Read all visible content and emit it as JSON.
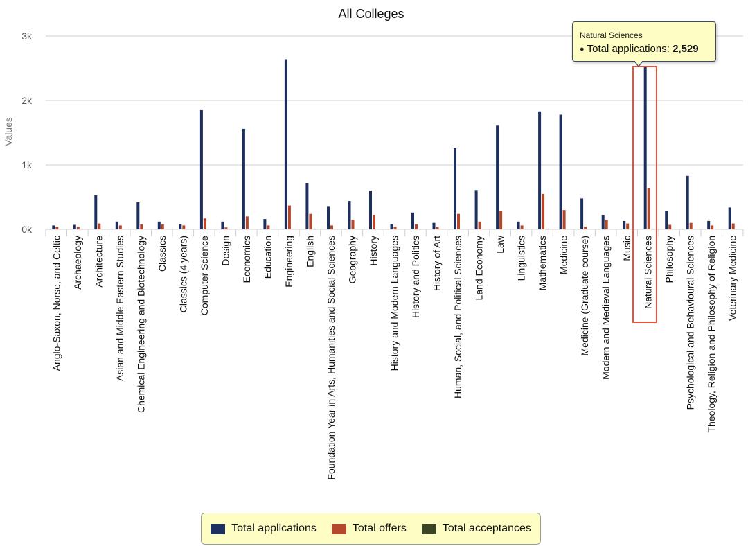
{
  "chart_data": {
    "type": "bar",
    "title": "All Colleges",
    "ylabel": "Values",
    "xlabel": "",
    "ylim": [
      0,
      3000
    ],
    "yticks": [
      {
        "value": 0,
        "label": "0k"
      },
      {
        "value": 1000,
        "label": "1k"
      },
      {
        "value": 2000,
        "label": "2k"
      },
      {
        "value": 3000,
        "label": "3k"
      }
    ],
    "grid": true,
    "legend_position": "bottom-center",
    "categories": [
      "Anglo-Saxon, Norse, and Celtic",
      "Archaeology",
      "Architecture",
      "Asian and Middle Eastern Studies",
      "Chemical Engineering and Biotechnology",
      "Classics",
      "Classics (4 years)",
      "Computer Science",
      "Design",
      "Economics",
      "Education",
      "Engineering",
      "English",
      "Foundation Year in Arts, Humanities and Social Sciences",
      "Geography",
      "History",
      "History and Modern Languages",
      "History and Politics",
      "History of Art",
      "Human, Social, and Political Sciences",
      "Land Economy",
      "Law",
      "Linguistics",
      "Mathematics",
      "Medicine",
      "Medicine (Graduate course)",
      "Modern and Medieval Languages",
      "Music",
      "Natural Sciences",
      "Philosophy",
      "Psychological and Behavioural Sciences",
      "Theology, Religion and Philosophy of Religion",
      "Veterinary Medicine"
    ],
    "series": [
      {
        "name": "Total applications",
        "color": "#1c2f5e",
        "values": [
          60,
          70,
          530,
          120,
          420,
          120,
          80,
          1850,
          120,
          1560,
          160,
          2640,
          720,
          350,
          440,
          600,
          80,
          260,
          100,
          1260,
          610,
          1610,
          120,
          1830,
          1780,
          480,
          220,
          130,
          2529,
          290,
          830,
          130,
          340
        ]
      },
      {
        "name": "Total offers",
        "color": "#b5472a",
        "values": [
          40,
          40,
          90,
          60,
          80,
          80,
          60,
          170,
          30,
          200,
          60,
          370,
          240,
          60,
          150,
          220,
          40,
          80,
          40,
          240,
          120,
          290,
          60,
          550,
          300,
          40,
          150,
          90,
          640,
          70,
          100,
          60,
          90
        ]
      },
      {
        "name": "Total acceptances",
        "color": "#3b4524",
        "values": [
          0,
          0,
          0,
          0,
          0,
          0,
          0,
          0,
          0,
          0,
          0,
          0,
          0,
          0,
          0,
          0,
          0,
          0,
          0,
          0,
          0,
          0,
          0,
          0,
          0,
          0,
          0,
          0,
          0,
          0,
          0,
          0,
          0
        ]
      }
    ]
  },
  "tooltip": {
    "category": "Natural Sciences",
    "series_label": "Total applications: ",
    "value": "2,529",
    "dot": "●"
  }
}
